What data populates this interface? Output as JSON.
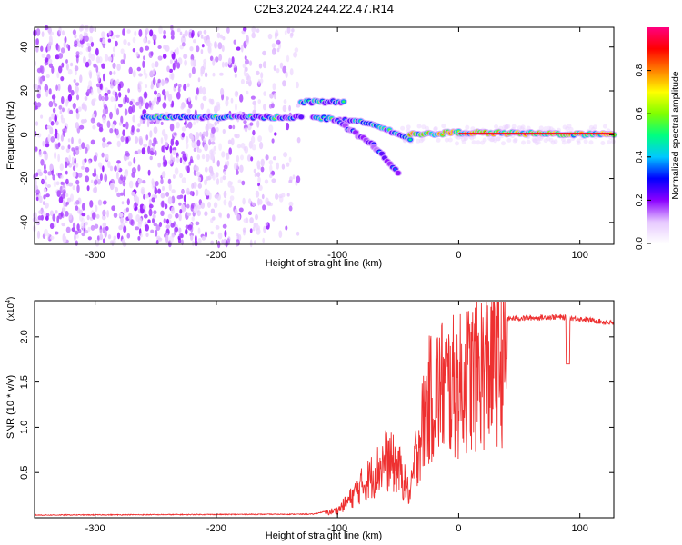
{
  "title": "C2E3.2024.244.22.47.R14",
  "chart_data": [
    {
      "type": "heatmap",
      "xlabel": "Height of straight line (km)",
      "ylabel": "Frequency (Hz)",
      "xlim": [
        -350,
        128
      ],
      "ylim": [
        -50,
        49
      ],
      "x_ticks": [
        -300,
        -200,
        -100,
        0,
        100
      ],
      "y_ticks": [
        -40,
        -20,
        0,
        20,
        40
      ],
      "grid": false,
      "colorbar": {
        "label": "Normalized spectral amplitude",
        "range": [
          0,
          1
        ],
        "ticks": [
          "0.0",
          "0.2",
          "0.4",
          "0.6",
          "0.8"
        ],
        "colors": [
          "#ffffff",
          "#e6c8ff",
          "#8b00ff",
          "#0000ff",
          "#00c8ff",
          "#00ff80",
          "#80ff00",
          "#ffff00",
          "#ff8000",
          "#ff0000",
          "#ff0080"
        ]
      },
      "features": [
        {
          "x": [
            -260,
            -130
          ],
          "y": [
            8,
            8
          ],
          "amplitude": 0.5
        },
        {
          "x": [
            -130,
            -95
          ],
          "y": [
            15,
            15
          ],
          "amplitude": 0.55
        },
        {
          "x": [
            -120,
            -70,
            -40
          ],
          "y": [
            8,
            5,
            -2
          ],
          "amplitude": 0.5
        },
        {
          "x": [
            -100,
            -70,
            -50
          ],
          "y": [
            6,
            -5,
            -17
          ],
          "amplitude": 0.35
        },
        {
          "x": [
            -40,
            0,
            128
          ],
          "y": [
            0,
            1,
            0
          ],
          "amplitude": 0.9
        }
      ]
    },
    {
      "type": "line",
      "xlabel": "Height of straight line (km)",
      "ylabel": "SNR (10 * v/v)",
      "y_multiplier": "(x10",
      "y_multiplier_exp": "4",
      "xlim": [
        -350,
        128
      ],
      "ylim": [
        0,
        2.4
      ],
      "x_ticks": [
        -300,
        -200,
        -100,
        0,
        100
      ],
      "y_ticks": [
        "0.5",
        "1.0",
        "1.5",
        "2.0"
      ],
      "grid": false,
      "series": [
        {
          "color": "#ee3030",
          "envelope": [
            [
              -350,
              0.03
            ],
            [
              -120,
              0.04
            ],
            [
              -100,
              0.1
            ],
            [
              -90,
              0.25
            ],
            [
              -80,
              0.45
            ],
            [
              -70,
              0.6
            ],
            [
              -60,
              0.8
            ],
            [
              -50,
              0.7
            ],
            [
              -40,
              0.3
            ],
            [
              -35,
              0.9
            ],
            [
              -25,
              1.6
            ],
            [
              -15,
              1.8
            ],
            [
              0,
              1.8
            ],
            [
              10,
              1.95
            ],
            [
              20,
              2.05
            ],
            [
              30,
              2.15
            ],
            [
              40,
              2.2
            ],
            [
              80,
              2.22
            ],
            [
              100,
              2.2
            ],
            [
              128,
              2.15
            ]
          ]
        }
      ]
    }
  ]
}
